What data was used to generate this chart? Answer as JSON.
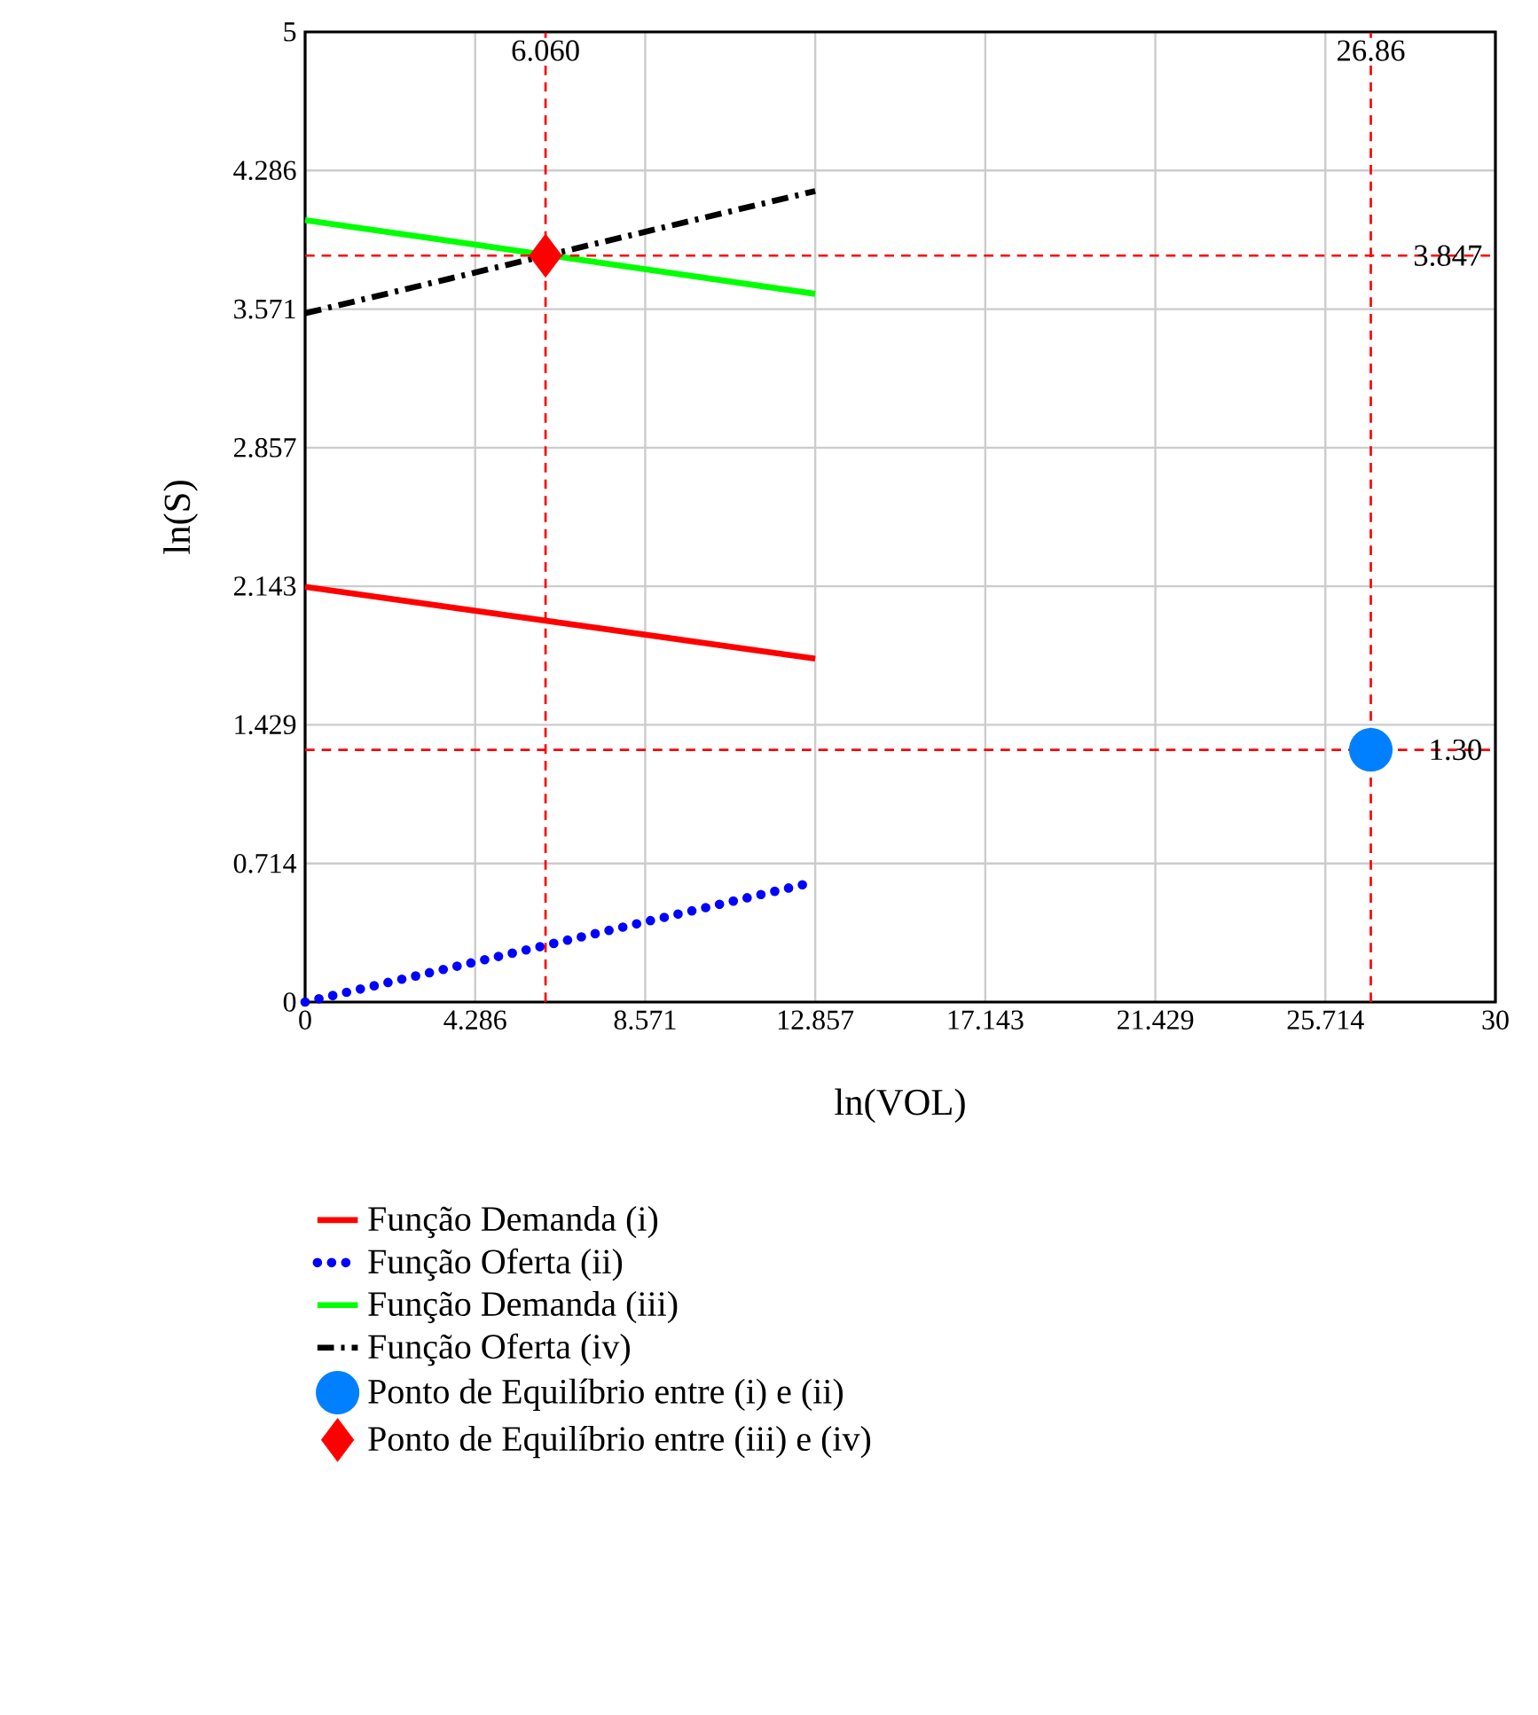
{
  "chart_data": {
    "type": "line",
    "xlabel": "ln(VOL)",
    "ylabel": "ln(S)",
    "xlim": [
      0,
      30
    ],
    "ylim": [
      0,
      5
    ],
    "xticks": [
      0,
      4.286,
      8.571,
      12.857,
      17.143,
      21.429,
      25.714,
      30
    ],
    "yticks": [
      0,
      0.714,
      1.429,
      2.143,
      2.857,
      3.571,
      4.286,
      5
    ],
    "grid": true,
    "legend": "bottom",
    "series": [
      {
        "name": "Função Demanda (i)",
        "color": "#ff0000",
        "line_style": "solid",
        "x": [
          0,
          12.857
        ],
        "values": [
          2.14,
          1.77
        ]
      },
      {
        "name": "Função Oferta (ii)",
        "color": "#0000ff",
        "line_style": "dotted",
        "x": [
          0,
          12.857
        ],
        "values": [
          0,
          0.62
        ]
      },
      {
        "name": "Função Demanda (iii)",
        "color": "#00ff00",
        "line_style": "solid",
        "x": [
          0,
          12.857
        ],
        "values": [
          4.03,
          3.65
        ]
      },
      {
        "name": "Função Oferta (iv)",
        "color": "#000000",
        "line_style": "dashdot",
        "x": [
          0,
          12.857
        ],
        "values": [
          3.55,
          4.18
        ]
      },
      {
        "name": "Ponto de Equilíbrio entre (i) e (ii)",
        "type": "scatter",
        "marker": "circle",
        "color": "#0080ff",
        "x": [
          26.86
        ],
        "values": [
          1.3
        ]
      },
      {
        "name": "Ponto de Equilíbrio entre (iii) e (iv)",
        "type": "scatter",
        "marker": "diamond",
        "color": "#ff0000",
        "x": [
          6.06
        ],
        "values": [
          3.847
        ]
      }
    ],
    "ref_lines": [
      {
        "axis": "x",
        "value": 6.06,
        "label": "6.060",
        "color": "#ff0000",
        "line_style": "dashed"
      },
      {
        "axis": "x",
        "value": 26.86,
        "label": "26.86",
        "color": "#ff0000",
        "line_style": "dashed"
      },
      {
        "axis": "y",
        "value": 3.847,
        "label": "3.847",
        "color": "#ff0000",
        "line_style": "dashed"
      },
      {
        "axis": "y",
        "value": 1.3,
        "label": "1.30",
        "color": "#ff0000",
        "line_style": "dashed"
      }
    ]
  }
}
